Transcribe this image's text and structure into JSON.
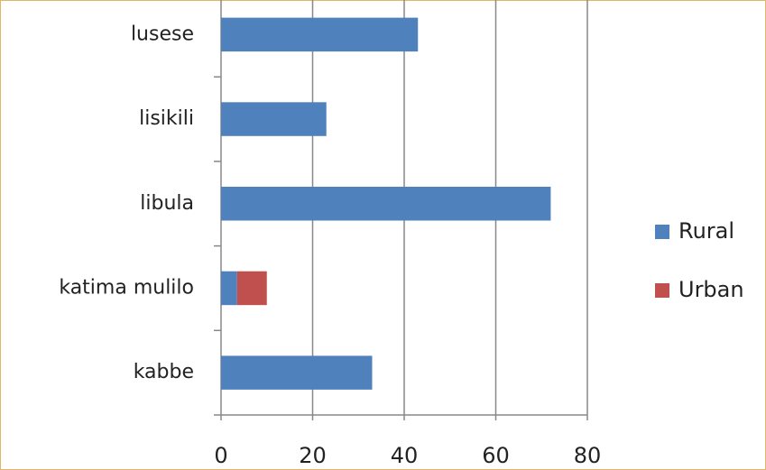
{
  "chart_data": {
    "type": "bar",
    "orientation": "horizontal",
    "stacked": true,
    "categories": [
      "kabbe",
      "katima mulilo",
      "libula",
      "lisikili",
      "lusese"
    ],
    "series": [
      {
        "name": "Rural",
        "color": "#4f81bd",
        "values": [
          33,
          3.5,
          72,
          23,
          43
        ]
      },
      {
        "name": "Urban",
        "color": "#c0504d",
        "values": [
          0,
          6.5,
          0,
          0,
          0
        ]
      }
    ],
    "xlim": [
      0,
      80
    ],
    "xticks": [
      0,
      20,
      40,
      60,
      80
    ],
    "grid": true,
    "legend": "right"
  }
}
